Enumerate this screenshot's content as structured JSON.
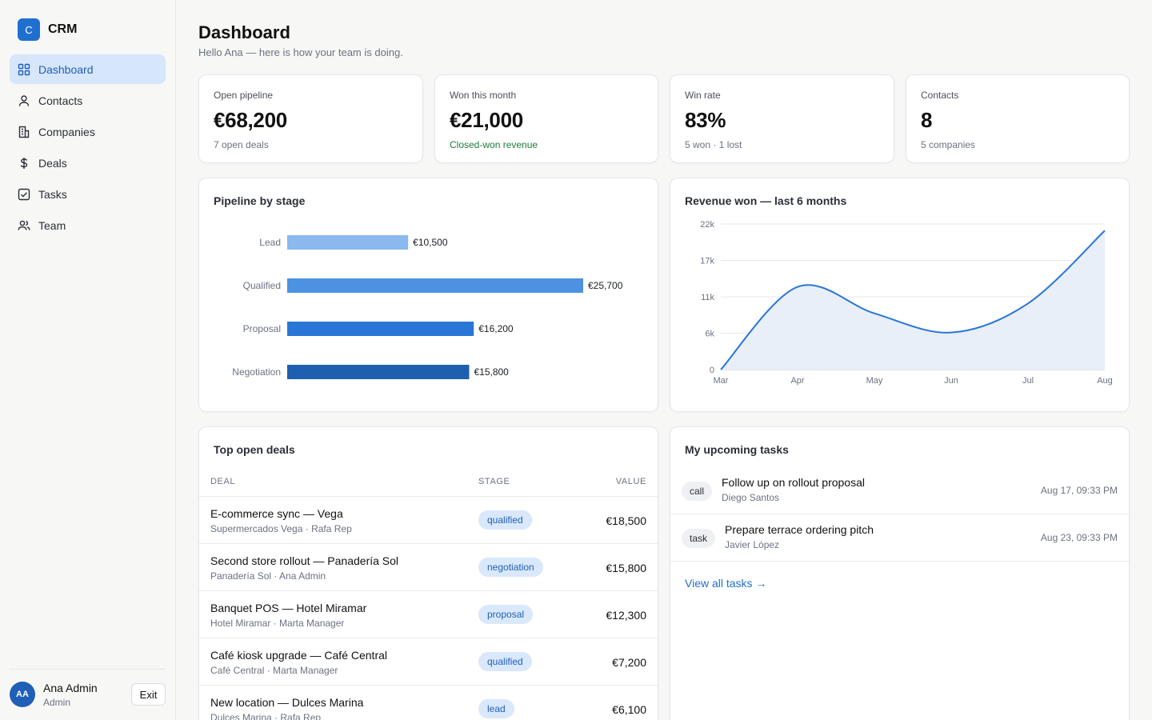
{
  "app": {
    "logo_letter": "C",
    "name": "CRM"
  },
  "sidebar": {
    "items": [
      {
        "label": "Dashboard",
        "icon": "dashboard-grid-icon",
        "active": true
      },
      {
        "label": "Contacts",
        "icon": "person-icon"
      },
      {
        "label": "Companies",
        "icon": "building-icon"
      },
      {
        "label": "Deals",
        "icon": "dollar-icon"
      },
      {
        "label": "Tasks",
        "icon": "checkbox-icon"
      },
      {
        "label": "Team",
        "icon": "users-icon"
      }
    ],
    "user": {
      "initials": "AA",
      "name": "Ana Admin",
      "role": "Admin",
      "exit_label": "Exit"
    }
  },
  "header": {
    "title": "Dashboard",
    "subtitle": "Hello Ana — here is how your team is doing."
  },
  "stats": [
    {
      "label": "Open pipeline",
      "value": "€68,200",
      "note": "7 open deals"
    },
    {
      "label": "Won this month",
      "value": "€21,000",
      "note": "Closed-won revenue"
    },
    {
      "label": "Win rate",
      "value": "83%",
      "note": "5 won · 1 lost"
    },
    {
      "label": "Contacts",
      "value": "8",
      "note": "5 companies"
    }
  ],
  "pipeline": {
    "title": "Pipeline by stage",
    "chart_data": {
      "type": "bar",
      "orientation": "horizontal",
      "categories": [
        "Lead",
        "Qualified",
        "Proposal",
        "Negotiation"
      ],
      "values": [
        10500,
        25700,
        16200,
        15800
      ],
      "labels": [
        "€10,500",
        "€25,700",
        "€16,200",
        "€15,800"
      ],
      "colors": [
        "#8ab8ef",
        "#4d91e3",
        "#2a76d6",
        "#1e5fb0"
      ]
    }
  },
  "revenue": {
    "title": "Revenue won — last 6 months",
    "chart_data": {
      "type": "area",
      "x": [
        "Mar",
        "Apr",
        "May",
        "Jun",
        "Jul",
        "Aug"
      ],
      "values": [
        0,
        12500,
        8500,
        5600,
        10000,
        21000
      ],
      "y_ticks": [
        "0",
        "6k",
        "11k",
        "17k",
        "22k"
      ],
      "ylim": [
        0,
        22000
      ],
      "grid": true,
      "line_color": "#2a76d6",
      "fill_color": "#e8eff9"
    }
  },
  "deals": {
    "title": "Top open deals",
    "columns": {
      "deal": "DEAL",
      "stage": "STAGE",
      "value": "VALUE"
    },
    "rows": [
      {
        "name": "E-commerce sync — Vega",
        "sub": "Supermercados Vega · Rafa Rep",
        "stage": "qualified",
        "value": "€18,500"
      },
      {
        "name": "Second store rollout — Panadería Sol",
        "sub": "Panadería Sol · Ana Admin",
        "stage": "negotiation",
        "value": "€15,800"
      },
      {
        "name": "Banquet POS — Hotel Miramar",
        "sub": "Hotel Miramar · Marta Manager",
        "stage": "proposal",
        "value": "€12,300"
      },
      {
        "name": "Café kiosk upgrade — Café Central",
        "sub": "Café Central · Marta Manager",
        "stage": "qualified",
        "value": "€7,200"
      },
      {
        "name": "New location — Dulces Marina",
        "sub": "Dulces Marina · Rafa Rep",
        "stage": "lead",
        "value": "€6,100"
      }
    ]
  },
  "tasks": {
    "title": "My upcoming tasks",
    "items": [
      {
        "type": "call",
        "title": "Follow up on rollout proposal",
        "person": "Diego Santos",
        "due": "Aug 17, 09:33 PM"
      },
      {
        "type": "task",
        "title": "Prepare terrace ordering pitch",
        "person": "Javier López",
        "due": "Aug 23, 09:33 PM"
      }
    ],
    "view_all": "View all tasks →"
  }
}
